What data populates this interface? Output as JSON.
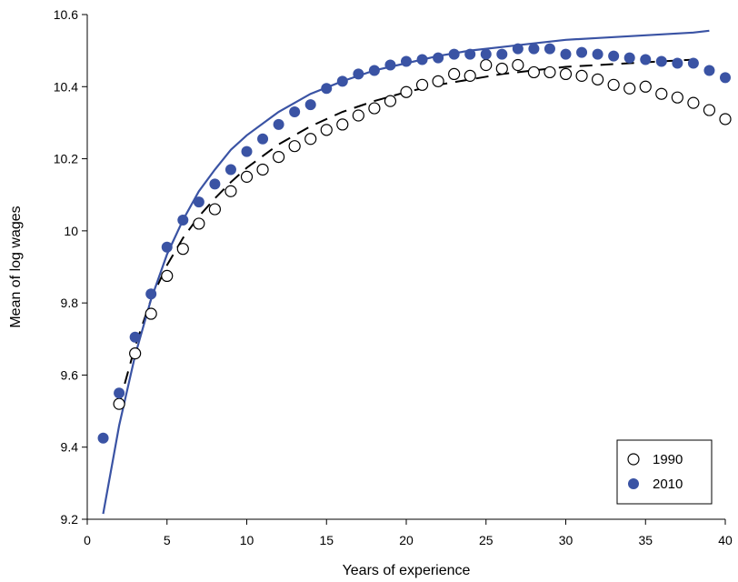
{
  "chart_data": {
    "type": "scatter",
    "xlabel": "Years of experience",
    "ylabel": "Mean of log wages",
    "xlim": [
      0,
      40
    ],
    "ylim": [
      9.2,
      10.6
    ],
    "xticks": [
      0,
      5,
      10,
      15,
      20,
      25,
      30,
      35,
      40
    ],
    "yticks": [
      9.2,
      9.4,
      9.6,
      9.8,
      10,
      10.2,
      10.4,
      10.6
    ],
    "xtick_labels": [
      "0",
      "5",
      "10",
      "15",
      "20",
      "25",
      "30",
      "35",
      "40"
    ],
    "ytick_labels": [
      "9.2",
      "9.4",
      "9.6",
      "9.8",
      "10",
      "10.2",
      "10.4",
      "10.6"
    ],
    "grid": false,
    "legend_position": "bottom-right",
    "series": [
      {
        "name": "1990",
        "marker": "hollow-circle",
        "color": "#000000",
        "x": [
          2,
          3,
          4,
          5,
          6,
          7,
          8,
          9,
          10,
          11,
          12,
          13,
          14,
          15,
          16,
          17,
          18,
          19,
          20,
          21,
          22,
          23,
          24,
          25,
          26,
          27,
          28,
          29,
          30,
          31,
          32,
          33,
          34,
          35,
          36,
          37,
          38,
          39,
          40
        ],
        "y": [
          9.52,
          9.66,
          9.77,
          9.875,
          9.95,
          10.02,
          10.06,
          10.11,
          10.15,
          10.17,
          10.205,
          10.235,
          10.255,
          10.28,
          10.295,
          10.32,
          10.34,
          10.36,
          10.385,
          10.405,
          10.415,
          10.435,
          10.43,
          10.46,
          10.45,
          10.46,
          10.44,
          10.44,
          10.435,
          10.43,
          10.42,
          10.405,
          10.395,
          10.4,
          10.38,
          10.37,
          10.355,
          10.335,
          10.31
        ]
      },
      {
        "name": "2010",
        "marker": "filled-circle",
        "color": "#3a53a4",
        "x": [
          1,
          2,
          3,
          4,
          5,
          6,
          7,
          8,
          9,
          10,
          11,
          12,
          13,
          14,
          15,
          16,
          17,
          18,
          19,
          20,
          21,
          22,
          23,
          24,
          25,
          26,
          27,
          28,
          29,
          30,
          31,
          32,
          33,
          34,
          35,
          36,
          37,
          38,
          39,
          40
        ],
        "y": [
          9.425,
          9.55,
          9.705,
          9.825,
          9.955,
          10.03,
          10.08,
          10.13,
          10.17,
          10.22,
          10.255,
          10.295,
          10.33,
          10.35,
          10.395,
          10.415,
          10.435,
          10.445,
          10.46,
          10.47,
          10.475,
          10.48,
          10.49,
          10.49,
          10.49,
          10.49,
          10.505,
          10.505,
          10.505,
          10.49,
          10.495,
          10.49,
          10.485,
          10.48,
          10.475,
          10.47,
          10.465,
          10.465,
          10.445,
          10.425
        ]
      }
    ],
    "fitted_lines": [
      {
        "series": "1990",
        "style": "dashed",
        "color": "#000000",
        "x": [
          2,
          3,
          4,
          5,
          6,
          7,
          8,
          9,
          10,
          12,
          14,
          16,
          18,
          20,
          22,
          24,
          26,
          28,
          30,
          32,
          34,
          36,
          38
        ],
        "y": [
          9.52,
          9.68,
          9.81,
          9.905,
          9.98,
          10.04,
          10.09,
          10.135,
          10.175,
          10.24,
          10.29,
          10.33,
          10.36,
          10.385,
          10.405,
          10.42,
          10.435,
          10.445,
          10.455,
          10.46,
          10.465,
          10.47,
          10.475
        ]
      },
      {
        "series": "2010",
        "style": "solid",
        "color": "#3a53a4",
        "x": [
          1,
          2,
          3,
          4,
          5,
          6,
          7,
          8,
          9,
          10,
          12,
          14,
          16,
          18,
          20,
          22,
          24,
          26,
          28,
          30,
          32,
          34,
          36,
          38,
          39
        ],
        "y": [
          9.215,
          9.46,
          9.655,
          9.81,
          9.935,
          10.03,
          10.11,
          10.17,
          10.225,
          10.265,
          10.33,
          10.38,
          10.415,
          10.445,
          10.465,
          10.485,
          10.5,
          10.51,
          10.52,
          10.53,
          10.535,
          10.54,
          10.545,
          10.55,
          10.555
        ]
      }
    ],
    "legend": [
      {
        "label": "1990",
        "marker": "hollow-circle"
      },
      {
        "label": "2010",
        "marker": "filled-circle"
      }
    ]
  }
}
